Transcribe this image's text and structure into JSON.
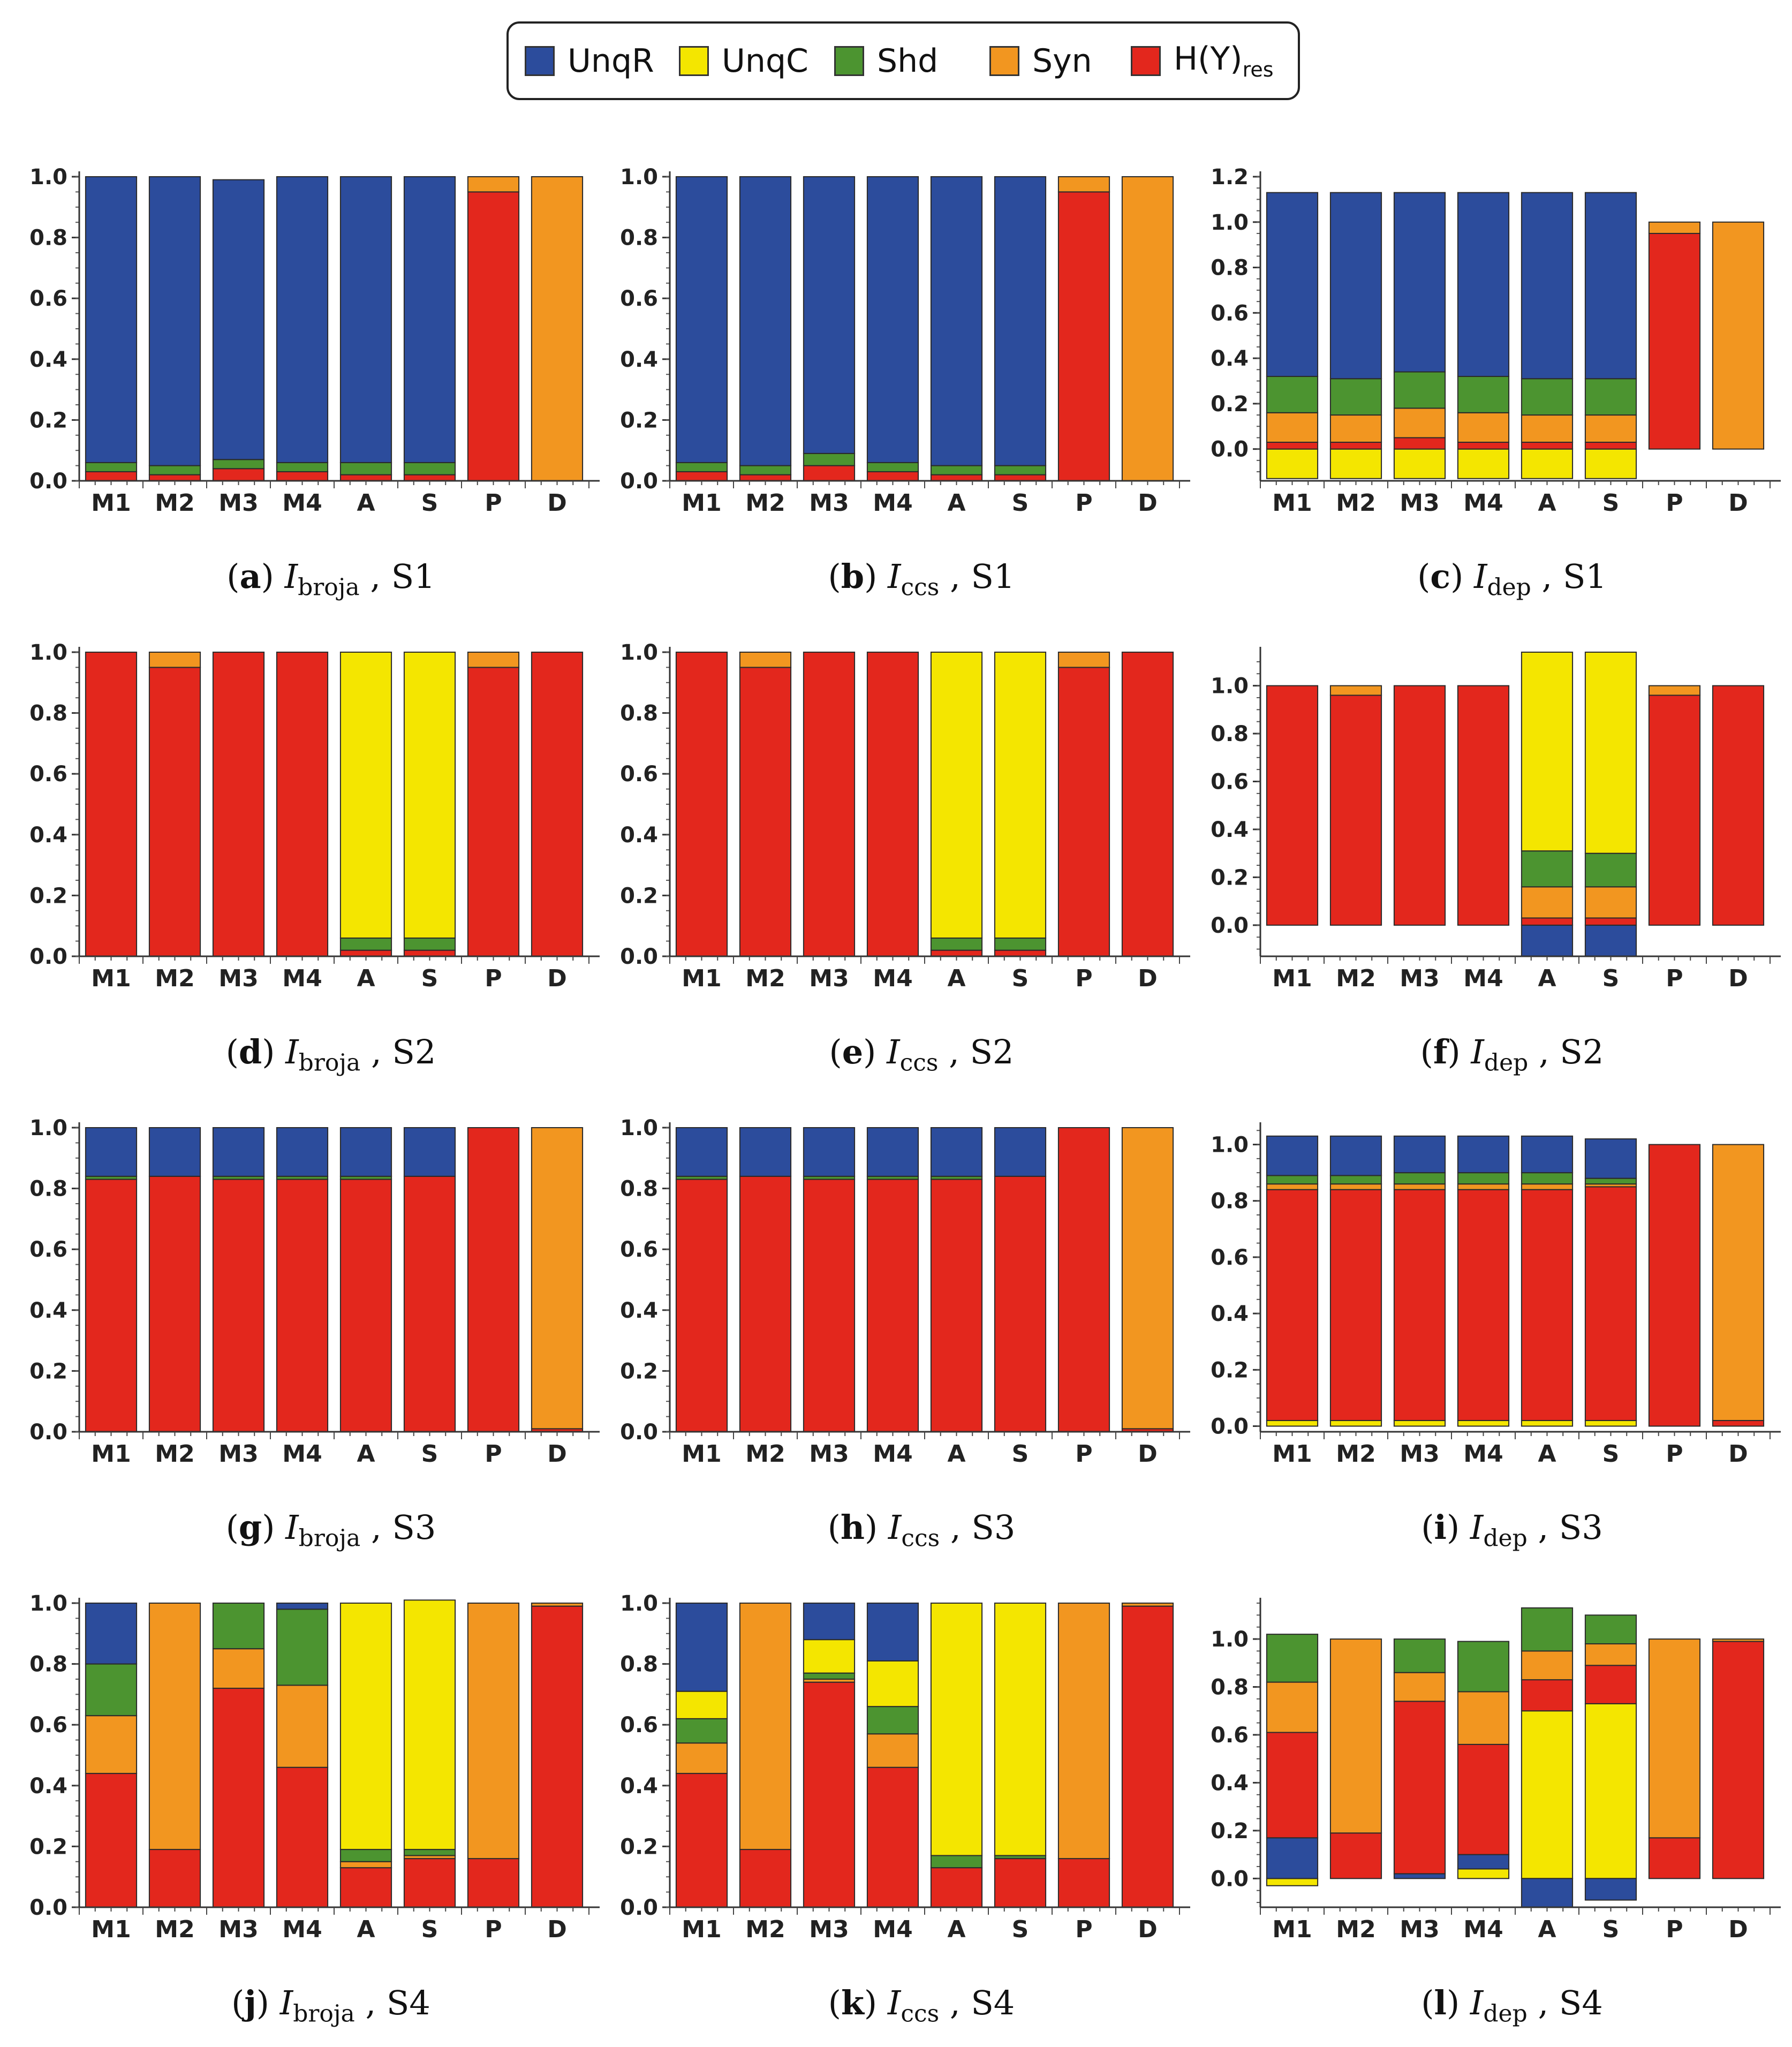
{
  "colors": {
    "UnqR": "#2c4c9c",
    "UnqC": "#f4e600",
    "Shd": "#4c9430",
    "Syn": "#f29620",
    "H(Y)res": "#e3271d"
  },
  "legend": [
    {
      "key": "UnqR",
      "label": "UnqR",
      "sub": ""
    },
    {
      "key": "UnqC",
      "label": "UnqC",
      "sub": ""
    },
    {
      "key": "Shd",
      "label": "Shd",
      "sub": ""
    },
    {
      "key": "Syn",
      "label": "Syn",
      "sub": ""
    },
    {
      "key": "H(Y)res",
      "label": "H(Y)",
      "sub": "res"
    }
  ],
  "chart_data": [
    {
      "id": "a",
      "type": "bar",
      "stacked": true,
      "caption": {
        "letter": "a",
        "measure": "I",
        "measure_sub": "broja",
        "scenario": "S1"
      },
      "categories": [
        "M1",
        "M2",
        "M3",
        "M4",
        "A",
        "S",
        "P",
        "D"
      ],
      "ylim": [
        0,
        1.0
      ],
      "yticks": [
        "0.0",
        "0.2",
        "0.4",
        "0.6",
        "0.8",
        "1.0"
      ],
      "series": [
        {
          "name": "H(Y)res",
          "values": [
            0.03,
            0.02,
            0.04,
            0.03,
            0.02,
            0.02,
            0.95,
            0
          ]
        },
        {
          "name": "Syn",
          "values": [
            0,
            0,
            0,
            0,
            0,
            0,
            0.05,
            1.0
          ]
        },
        {
          "name": "Shd",
          "values": [
            0.03,
            0.03,
            0.03,
            0.03,
            0.04,
            0.04,
            0,
            0
          ]
        },
        {
          "name": "UnqR",
          "values": [
            0.94,
            0.95,
            0.92,
            0.94,
            0.94,
            0.94,
            0,
            0
          ]
        }
      ]
    },
    {
      "id": "b",
      "type": "bar",
      "stacked": true,
      "caption": {
        "letter": "b",
        "measure": "I",
        "measure_sub": "ccs",
        "scenario": "S1"
      },
      "categories": [
        "M1",
        "M2",
        "M3",
        "M4",
        "A",
        "S",
        "P",
        "D"
      ],
      "ylim": [
        0,
        1.0
      ],
      "yticks": [
        "0.0",
        "0.2",
        "0.4",
        "0.6",
        "0.8",
        "1.0"
      ],
      "series": [
        {
          "name": "H(Y)res",
          "values": [
            0.03,
            0.02,
            0.05,
            0.03,
            0.02,
            0.02,
            0.95,
            0
          ]
        },
        {
          "name": "Syn",
          "values": [
            0,
            0,
            0,
            0,
            0,
            0,
            0.05,
            1.0
          ]
        },
        {
          "name": "Shd",
          "values": [
            0.03,
            0.03,
            0.04,
            0.03,
            0.03,
            0.03,
            0,
            0
          ]
        },
        {
          "name": "UnqR",
          "values": [
            0.94,
            0.95,
            0.91,
            0.94,
            0.95,
            0.95,
            0,
            0
          ]
        }
      ]
    },
    {
      "id": "c",
      "type": "bar",
      "stacked": true,
      "caption": {
        "letter": "c",
        "measure": "I",
        "measure_sub": "dep",
        "scenario": "S1"
      },
      "categories": [
        "M1",
        "M2",
        "M3",
        "M4",
        "A",
        "S",
        "P",
        "D"
      ],
      "ylim": [
        -0.14,
        1.2
      ],
      "yticks": [
        "0.0",
        "0.2",
        "0.4",
        "0.6",
        "0.8",
        "1.0",
        "1.2"
      ],
      "series": [
        {
          "name": "UnqC",
          "values": [
            -0.13,
            -0.13,
            -0.13,
            -0.13,
            -0.13,
            -0.13,
            0,
            0
          ]
        },
        {
          "name": "H(Y)res",
          "values": [
            0.03,
            0.03,
            0.05,
            0.03,
            0.03,
            0.03,
            0.95,
            0
          ]
        },
        {
          "name": "Syn",
          "values": [
            0.13,
            0.12,
            0.13,
            0.13,
            0.12,
            0.12,
            0.05,
            1.0
          ]
        },
        {
          "name": "Shd",
          "values": [
            0.16,
            0.16,
            0.16,
            0.16,
            0.16,
            0.16,
            0,
            0
          ]
        },
        {
          "name": "UnqR",
          "values": [
            0.81,
            0.82,
            0.79,
            0.81,
            0.82,
            0.82,
            0,
            0
          ]
        }
      ]
    },
    {
      "id": "d",
      "type": "bar",
      "stacked": true,
      "caption": {
        "letter": "d",
        "measure": "I",
        "measure_sub": "broja",
        "scenario": "S2"
      },
      "categories": [
        "M1",
        "M2",
        "M3",
        "M4",
        "A",
        "S",
        "P",
        "D"
      ],
      "ylim": [
        0,
        1.0
      ],
      "yticks": [
        "0.0",
        "0.2",
        "0.4",
        "0.6",
        "0.8",
        "1.0"
      ],
      "series": [
        {
          "name": "H(Y)res",
          "values": [
            1.0,
            0.95,
            1.0,
            1.0,
            0.02,
            0.02,
            0.95,
            1.0
          ]
        },
        {
          "name": "Syn",
          "values": [
            0,
            0.05,
            0,
            0,
            0,
            0,
            0.05,
            0
          ]
        },
        {
          "name": "Shd",
          "values": [
            0,
            0,
            0,
            0,
            0.04,
            0.04,
            0,
            0
          ]
        },
        {
          "name": "UnqC",
          "values": [
            0,
            0,
            0,
            0,
            0.94,
            0.94,
            0,
            0
          ]
        }
      ]
    },
    {
      "id": "e",
      "type": "bar",
      "stacked": true,
      "caption": {
        "letter": "e",
        "measure": "I",
        "measure_sub": "ccs",
        "scenario": "S2"
      },
      "categories": [
        "M1",
        "M2",
        "M3",
        "M4",
        "A",
        "S",
        "P",
        "D"
      ],
      "ylim": [
        0,
        1.0
      ],
      "yticks": [
        "0.0",
        "0.2",
        "0.4",
        "0.6",
        "0.8",
        "1.0"
      ],
      "series": [
        {
          "name": "H(Y)res",
          "values": [
            1.0,
            0.95,
            1.0,
            1.0,
            0.02,
            0.02,
            0.95,
            1.0
          ]
        },
        {
          "name": "Syn",
          "values": [
            0,
            0.05,
            0,
            0,
            0,
            0,
            0.05,
            0
          ]
        },
        {
          "name": "Shd",
          "values": [
            0,
            0,
            0,
            0,
            0.04,
            0.04,
            0,
            0
          ]
        },
        {
          "name": "UnqC",
          "values": [
            0,
            0,
            0,
            0,
            0.94,
            0.94,
            0,
            0
          ]
        }
      ]
    },
    {
      "id": "f",
      "type": "bar",
      "stacked": true,
      "caption": {
        "letter": "f",
        "measure": "I",
        "measure_sub": "dep",
        "scenario": "S2"
      },
      "categories": [
        "M1",
        "M2",
        "M3",
        "M4",
        "A",
        "S",
        "P",
        "D"
      ],
      "ylim": [
        -0.13,
        1.14
      ],
      "yticks": [
        "0.0",
        "0.2",
        "0.4",
        "0.6",
        "0.8",
        "1.0"
      ],
      "series": [
        {
          "name": "UnqR",
          "values": [
            0,
            0,
            0,
            0,
            -0.13,
            -0.13,
            0,
            0
          ]
        },
        {
          "name": "H(Y)res",
          "values": [
            1.0,
            0.96,
            1.0,
            1.0,
            0.03,
            0.03,
            0.96,
            1.0
          ]
        },
        {
          "name": "Syn",
          "values": [
            0,
            0.04,
            0,
            0,
            0.13,
            0.13,
            0.04,
            0
          ]
        },
        {
          "name": "Shd",
          "values": [
            0,
            0,
            0,
            0,
            0.15,
            0.14,
            0,
            0
          ]
        },
        {
          "name": "UnqC",
          "values": [
            0,
            0,
            0,
            0,
            0.83,
            0.84,
            0,
            0
          ]
        }
      ]
    },
    {
      "id": "g",
      "type": "bar",
      "stacked": true,
      "caption": {
        "letter": "g",
        "measure": "I",
        "measure_sub": "broja",
        "scenario": "S3"
      },
      "categories": [
        "M1",
        "M2",
        "M3",
        "M4",
        "A",
        "S",
        "P",
        "D"
      ],
      "ylim": [
        0,
        1.0
      ],
      "yticks": [
        "0.0",
        "0.2",
        "0.4",
        "0.6",
        "0.8",
        "1.0"
      ],
      "series": [
        {
          "name": "H(Y)res",
          "values": [
            0.83,
            0.84,
            0.83,
            0.83,
            0.83,
            0.84,
            1.0,
            0.01
          ]
        },
        {
          "name": "Syn",
          "values": [
            0,
            0,
            0,
            0,
            0,
            0,
            0,
            0.99
          ]
        },
        {
          "name": "Shd",
          "values": [
            0.01,
            0,
            0.01,
            0.01,
            0.01,
            0,
            0,
            0
          ]
        },
        {
          "name": "UnqR",
          "values": [
            0.16,
            0.16,
            0.16,
            0.16,
            0.16,
            0.16,
            0,
            0
          ]
        }
      ]
    },
    {
      "id": "h",
      "type": "bar",
      "stacked": true,
      "caption": {
        "letter": "h",
        "measure": "I",
        "measure_sub": "ccs",
        "scenario": "S3"
      },
      "categories": [
        "M1",
        "M2",
        "M3",
        "M4",
        "A",
        "S",
        "P",
        "D"
      ],
      "ylim": [
        0,
        1.0
      ],
      "yticks": [
        "0.0",
        "0.2",
        "0.4",
        "0.6",
        "0.8",
        "1.0"
      ],
      "series": [
        {
          "name": "H(Y)res",
          "values": [
            0.83,
            0.84,
            0.83,
            0.83,
            0.83,
            0.84,
            1.0,
            0.01
          ]
        },
        {
          "name": "Syn",
          "values": [
            0,
            0,
            0,
            0,
            0,
            0,
            0,
            0.99
          ]
        },
        {
          "name": "Shd",
          "values": [
            0.01,
            0,
            0.01,
            0.01,
            0.01,
            0,
            0,
            0
          ]
        },
        {
          "name": "UnqR",
          "values": [
            0.16,
            0.16,
            0.16,
            0.16,
            0.16,
            0.16,
            0,
            0
          ]
        }
      ]
    },
    {
      "id": "i",
      "type": "bar",
      "stacked": true,
      "caption": {
        "letter": "i",
        "measure": "I",
        "measure_sub": "dep",
        "scenario": "S3"
      },
      "categories": [
        "M1",
        "M2",
        "M3",
        "M4",
        "A",
        "S",
        "P",
        "D"
      ],
      "ylim": [
        -0.02,
        1.06
      ],
      "yticks": [
        "0.0",
        "0.2",
        "0.4",
        "0.6",
        "0.8",
        "1.0"
      ],
      "series": [
        {
          "name": "UnqC",
          "values": [
            0.02,
            0.02,
            0.02,
            0.02,
            0.02,
            0.02,
            0,
            0
          ]
        },
        {
          "name": "H(Y)res",
          "values": [
            0.82,
            0.82,
            0.82,
            0.82,
            0.82,
            0.83,
            1.0,
            0.02
          ]
        },
        {
          "name": "Syn",
          "values": [
            0.02,
            0.02,
            0.02,
            0.02,
            0.02,
            0.01,
            0,
            0.98
          ]
        },
        {
          "name": "Shd",
          "values": [
            0.03,
            0.03,
            0.04,
            0.04,
            0.04,
            0.02,
            0,
            0
          ]
        },
        {
          "name": "UnqR",
          "values": [
            0.14,
            0.14,
            0.13,
            0.13,
            0.13,
            0.14,
            0,
            0
          ]
        }
      ]
    },
    {
      "id": "j",
      "type": "bar",
      "stacked": true,
      "caption": {
        "letter": "j",
        "measure": "I",
        "measure_sub": "broja",
        "scenario": "S4"
      },
      "categories": [
        "M1",
        "M2",
        "M3",
        "M4",
        "A",
        "S",
        "P",
        "D"
      ],
      "ylim": [
        0,
        1.0
      ],
      "yticks": [
        "0.0",
        "0.2",
        "0.4",
        "0.6",
        "0.8",
        "1.0"
      ],
      "series": [
        {
          "name": "H(Y)res",
          "values": [
            0.44,
            0.19,
            0.72,
            0.46,
            0.13,
            0.16,
            0.16,
            0.99
          ]
        },
        {
          "name": "Syn",
          "values": [
            0.19,
            0.81,
            0.13,
            0.27,
            0.02,
            0.01,
            0.84,
            0.01
          ]
        },
        {
          "name": "Shd",
          "values": [
            0.17,
            0,
            0.15,
            0.25,
            0.04,
            0.02,
            0,
            0
          ]
        },
        {
          "name": "UnqC",
          "values": [
            0,
            0,
            0,
            0,
            0.81,
            0.82,
            0,
            0
          ]
        },
        {
          "name": "UnqR",
          "values": [
            0.2,
            0,
            0,
            0.02,
            0,
            0,
            0,
            0
          ]
        }
      ]
    },
    {
      "id": "k",
      "type": "bar",
      "stacked": true,
      "caption": {
        "letter": "k",
        "measure": "I",
        "measure_sub": "ccs",
        "scenario": "S4"
      },
      "categories": [
        "M1",
        "M2",
        "M3",
        "M4",
        "A",
        "S",
        "P",
        "D"
      ],
      "ylim": [
        0,
        1.0
      ],
      "yticks": [
        "0.0",
        "0.2",
        "0.4",
        "0.6",
        "0.8",
        "1.0"
      ],
      "series": [
        {
          "name": "H(Y)res",
          "values": [
            0.44,
            0.19,
            0.74,
            0.46,
            0.13,
            0.16,
            0.16,
            0.99
          ]
        },
        {
          "name": "Syn",
          "values": [
            0.1,
            0.81,
            0.01,
            0.11,
            0,
            0,
            0.84,
            0.01
          ]
        },
        {
          "name": "Shd",
          "values": [
            0.08,
            0,
            0.02,
            0.09,
            0.04,
            0.01,
            0,
            0
          ]
        },
        {
          "name": "UnqC",
          "values": [
            0.09,
            0,
            0.11,
            0.15,
            0.83,
            0.83,
            0,
            0
          ]
        },
        {
          "name": "UnqR",
          "values": [
            0.29,
            0,
            0.12,
            0.19,
            0,
            0,
            0,
            0
          ]
        }
      ]
    },
    {
      "id": "l",
      "type": "bar",
      "stacked": true,
      "caption": {
        "letter": "l",
        "measure": "I",
        "measure_sub": "dep",
        "scenario": "S4"
      },
      "categories": [
        "M1",
        "M2",
        "M3",
        "M4",
        "A",
        "S",
        "P",
        "D"
      ],
      "ylim": [
        -0.12,
        1.15
      ],
      "yticks": [
        "0.0",
        "0.2",
        "0.4",
        "0.6",
        "0.8",
        "1.0"
      ],
      "series": [
        {
          "name": "UnqC",
          "values": [
            -0.03,
            0,
            0,
            0.04,
            0.7,
            0.73,
            0,
            0
          ]
        },
        {
          "name": "UnqR",
          "values": [
            0.17,
            0,
            0.02,
            0.06,
            -0.12,
            -0.09,
            0,
            0
          ]
        },
        {
          "name": "H(Y)res",
          "values": [
            0.44,
            0.19,
            0.72,
            0.46,
            0.13,
            0.16,
            0.17,
            0.99
          ]
        },
        {
          "name": "Syn",
          "values": [
            0.21,
            0.81,
            0.12,
            0.22,
            0.12,
            0.09,
            0.83,
            0.01
          ]
        },
        {
          "name": "Shd",
          "values": [
            0.2,
            0,
            0.14,
            0.21,
            0.18,
            0.12,
            0,
            0
          ]
        }
      ]
    }
  ]
}
